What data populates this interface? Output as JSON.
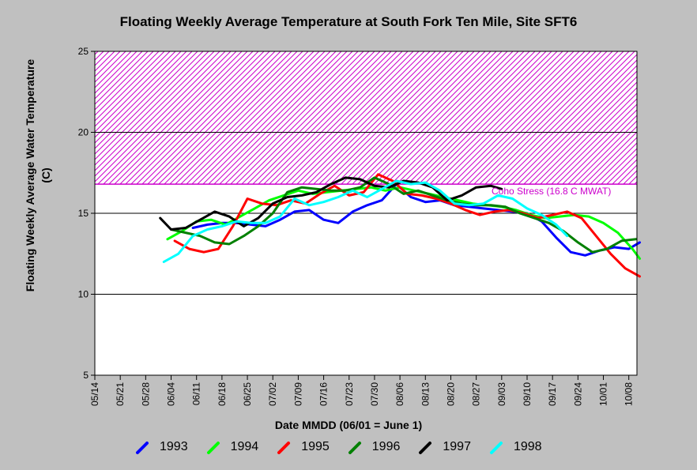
{
  "chart_data": {
    "type": "line",
    "title": "Floating Weekly Average Temperature at South Fork Ten Mile, Site SFT6",
    "xlabel": "Date MMDD (06/01 = June 1)",
    "ylabel": "Floating Weekly Average Water Temperature (C)",
    "ylim": [
      5,
      25
    ],
    "yticks": [
      5,
      10,
      15,
      20,
      25
    ],
    "xticks": [
      "05/14",
      "05/21",
      "05/28",
      "06/04",
      "06/11",
      "06/18",
      "06/25",
      "07/02",
      "07/09",
      "07/16",
      "07/23",
      "07/30",
      "08/06",
      "08/13",
      "08/20",
      "08/27",
      "09/03",
      "09/10",
      "09/17",
      "09/24",
      "10/01",
      "10/08"
    ],
    "grid": "horizontal",
    "threshold": {
      "label": "Coho Stress (16.8 C MWAT)",
      "value": 16.8,
      "band_top": 25,
      "color": "#cc00cc"
    },
    "series": [
      {
        "name": "1993",
        "color": "#0000ff",
        "x": [
          "06/10",
          "06/14",
          "06/18",
          "06/22",
          "06/26",
          "06/30",
          "07/04",
          "07/08",
          "07/12",
          "07/16",
          "07/20",
          "07/24",
          "07/28",
          "08/01",
          "08/05",
          "08/09",
          "08/13",
          "08/17",
          "08/21",
          "08/25",
          "08/29",
          "09/02",
          "09/06",
          "09/10",
          "09/14",
          "09/18",
          "09/22",
          "09/26",
          "09/30",
          "10/04",
          "10/08",
          "10/11"
        ],
        "values": [
          14.1,
          14.3,
          14.4,
          14.4,
          14.3,
          14.2,
          14.6,
          15.1,
          15.2,
          14.6,
          14.4,
          15.1,
          15.5,
          15.8,
          16.8,
          16.0,
          15.7,
          15.8,
          15.5,
          15.4,
          15.3,
          15.2,
          15.1,
          15.0,
          14.5,
          13.5,
          12.6,
          12.4,
          12.7,
          12.9,
          12.8,
          13.2
        ]
      },
      {
        "name": "1994",
        "color": "#00ff00",
        "x": [
          "06/03",
          "06/07",
          "06/11",
          "06/15",
          "06/19",
          "06/23",
          "06/27",
          "07/01",
          "07/05",
          "07/09",
          "07/13",
          "07/17",
          "07/21",
          "07/25",
          "07/29",
          "08/02",
          "08/06",
          "08/10",
          "08/14",
          "08/18",
          "08/22",
          "08/26",
          "08/30",
          "09/03",
          "09/07",
          "09/11",
          "09/15",
          "09/19",
          "09/23",
          "09/27",
          "10/01",
          "10/05",
          "10/09",
          "10/11"
        ],
        "values": [
          13.4,
          13.9,
          14.5,
          14.6,
          14.3,
          14.8,
          15.3,
          15.8,
          16.1,
          16.4,
          16.2,
          16.3,
          16.4,
          16.5,
          16.6,
          16.4,
          16.6,
          16.4,
          16.2,
          16.0,
          15.8,
          15.6,
          15.5,
          15.4,
          15.2,
          14.9,
          14.7,
          14.8,
          14.9,
          14.8,
          14.4,
          13.8,
          12.8,
          12.2
        ]
      },
      {
        "name": "1995",
        "color": "#ff0000",
        "x": [
          "06/05",
          "06/09",
          "06/13",
          "06/17",
          "06/21",
          "06/25",
          "06/29",
          "07/03",
          "07/07",
          "07/11",
          "07/15",
          "07/19",
          "07/23",
          "07/27",
          "07/31",
          "08/04",
          "08/08",
          "08/12",
          "08/16",
          "08/20",
          "08/24",
          "08/28",
          "09/01",
          "09/05",
          "09/09",
          "09/13",
          "09/17",
          "09/21",
          "09/25",
          "09/29",
          "10/03",
          "10/07",
          "10/11"
        ],
        "values": [
          13.3,
          12.8,
          12.6,
          12.8,
          14.2,
          15.9,
          15.6,
          15.5,
          15.8,
          15.6,
          16.2,
          16.7,
          16.1,
          16.3,
          17.4,
          17.0,
          16.2,
          16.1,
          15.9,
          15.6,
          15.2,
          14.9,
          15.1,
          15.2,
          15.0,
          14.7,
          14.9,
          15.1,
          14.7,
          13.6,
          12.5,
          11.6,
          11.1
        ]
      },
      {
        "name": "1996",
        "color": "#008000",
        "x": [
          "06/04",
          "06/08",
          "06/12",
          "06/16",
          "06/20",
          "06/24",
          "06/28",
          "07/02",
          "07/06",
          "07/10",
          "07/14",
          "07/18",
          "07/22",
          "07/26",
          "07/30",
          "08/03",
          "08/07",
          "08/11",
          "08/15",
          "08/19",
          "08/23",
          "08/27",
          "08/31",
          "09/04",
          "09/08",
          "09/12",
          "09/16",
          "09/20",
          "09/24",
          "09/28",
          "10/02",
          "10/06",
          "10/10"
        ],
        "values": [
          14.0,
          13.8,
          13.6,
          13.2,
          13.1,
          13.6,
          14.2,
          15.0,
          16.3,
          16.6,
          16.5,
          16.4,
          16.4,
          16.6,
          17.2,
          16.8,
          16.2,
          16.4,
          16.1,
          15.8,
          15.6,
          15.5,
          15.5,
          15.4,
          15.0,
          14.7,
          14.4,
          13.9,
          13.2,
          12.6,
          12.8,
          13.3,
          13.4
        ]
      },
      {
        "name": "1997",
        "color": "#000000",
        "x": [
          "06/01",
          "06/04",
          "06/08",
          "06/12",
          "06/16",
          "06/20",
          "06/24",
          "06/28",
          "07/02",
          "07/06",
          "07/10",
          "07/14",
          "07/18",
          "07/22",
          "07/26",
          "07/30",
          "08/03",
          "08/07",
          "08/11",
          "08/15",
          "08/19",
          "08/23",
          "08/27",
          "08/31",
          "09/03"
        ],
        "values": [
          14.7,
          14.0,
          14.1,
          14.6,
          15.1,
          14.8,
          14.2,
          14.7,
          15.6,
          16.0,
          16.1,
          16.3,
          16.8,
          17.2,
          17.1,
          16.7,
          16.6,
          17.0,
          16.9,
          16.6,
          15.8,
          16.1,
          16.6,
          16.7,
          16.5
        ]
      },
      {
        "name": "1998",
        "color": "#00ffff",
        "x": [
          "06/02",
          "06/06",
          "06/10",
          "06/14",
          "06/18",
          "06/22",
          "06/26",
          "06/30",
          "07/04",
          "07/08",
          "07/12",
          "07/16",
          "07/20",
          "07/24",
          "07/28",
          "08/01",
          "08/05",
          "08/09",
          "08/13",
          "08/17",
          "08/21",
          "08/25",
          "08/29",
          "09/02",
          "09/06",
          "09/10",
          "09/14",
          "09/18",
          "09/21"
        ],
        "values": [
          12.0,
          12.5,
          13.6,
          14.0,
          14.2,
          14.5,
          14.4,
          14.4,
          14.8,
          15.9,
          15.5,
          15.7,
          16.0,
          16.4,
          16.0,
          16.5,
          17.0,
          16.8,
          16.9,
          16.4,
          15.6,
          15.5,
          15.6,
          16.1,
          15.9,
          15.3,
          14.9,
          14.3,
          13.6
        ]
      }
    ]
  }
}
